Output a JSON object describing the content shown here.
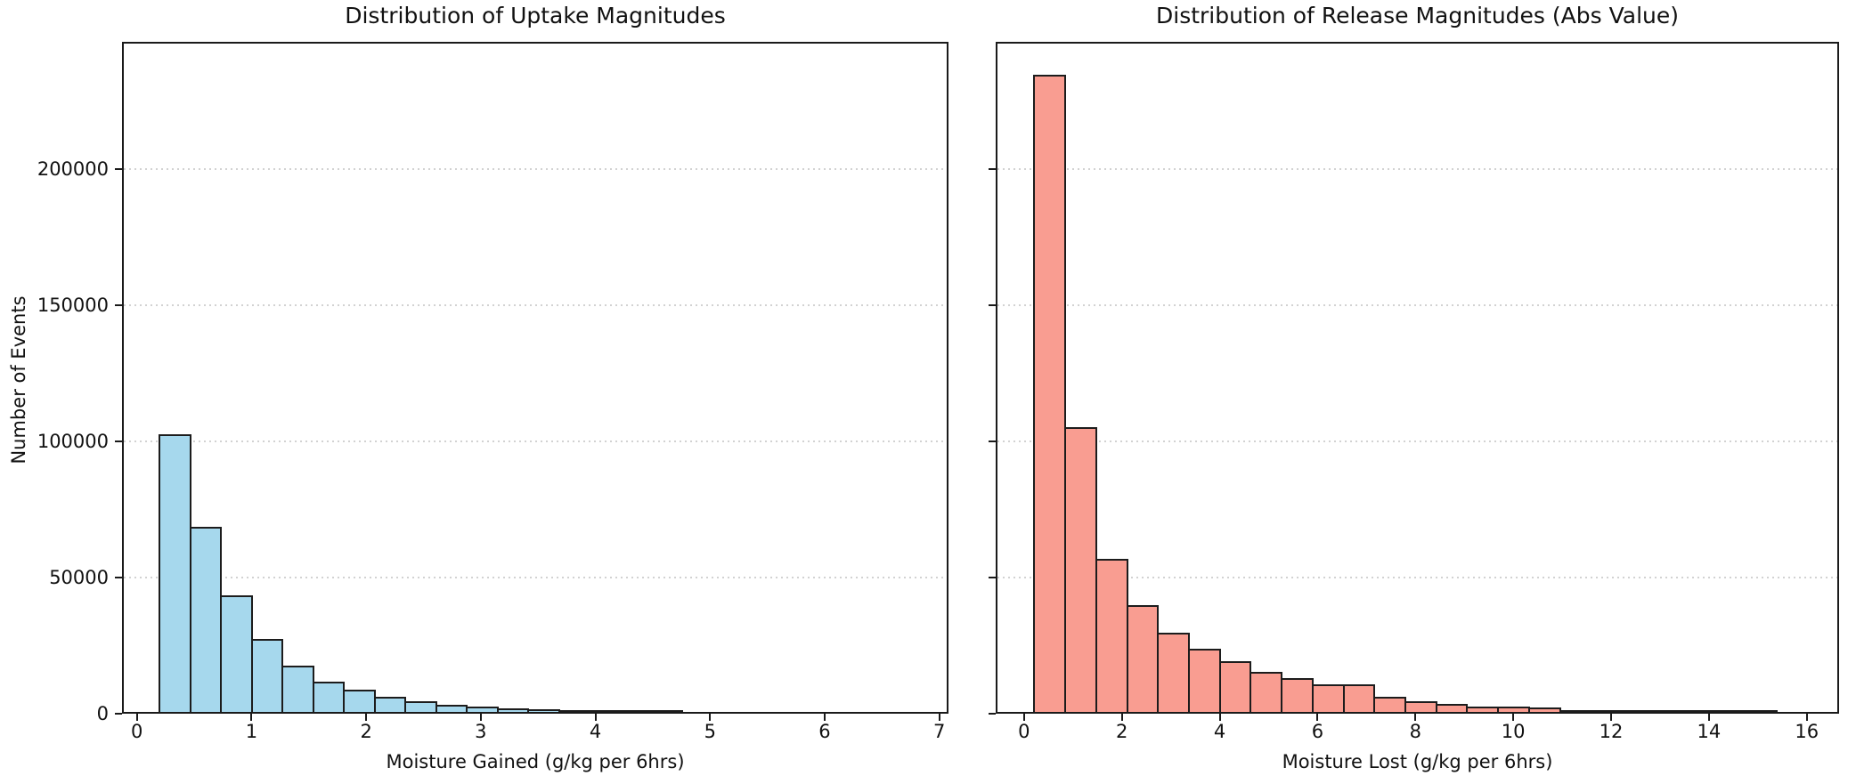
{
  "chart_data": [
    {
      "type": "bar",
      "title": "Distribution of Uptake Magnitudes",
      "xlabel": "Moisture Gained (g/kg per 6hrs)",
      "ylabel": "Number of Events",
      "grid": "horizontal dotted",
      "legend_position": "none",
      "bar_color": "#a6d8ed",
      "edge_color": "#1c1c1c",
      "bins": {
        "start": 0.2,
        "width": 0.268,
        "count": 25
      },
      "values": [
        102600,
        68300,
        43200,
        26900,
        17100,
        11100,
        8200,
        5700,
        4000,
        2600,
        2050,
        1300,
        980,
        650,
        430,
        240,
        80,
        0,
        0,
        0,
        0,
        0,
        0,
        0,
        0
      ],
      "xticks": [
        0,
        1,
        2,
        3,
        4,
        5,
        6,
        7
      ],
      "xtick_labels": [
        "0",
        "1",
        "2",
        "3",
        "4",
        "5",
        "6",
        "7"
      ],
      "yticks": [
        0,
        50000,
        100000,
        150000,
        200000
      ],
      "ytick_labels": [
        "0",
        "50000",
        "100000",
        "150000",
        "200000"
      ],
      "ytick_labels_visible": true,
      "xlim": [
        -0.13,
        7.08
      ],
      "ylim": [
        0,
        246700
      ]
    },
    {
      "type": "bar",
      "title": "Distribution of Release Magnitudes (Abs Value)",
      "xlabel": "Moisture Lost (g/kg per 6hrs)",
      "ylabel": "",
      "grid": "horizontal dotted",
      "legend_position": "none",
      "bar_color": "#f99d91",
      "edge_color": "#1c1c1c",
      "bins": {
        "start": 0.21,
        "width": 0.632,
        "count": 25
      },
      "values": [
        235200,
        105100,
        56500,
        39400,
        29300,
        23300,
        18700,
        14900,
        12600,
        10300,
        10300,
        5650,
        3800,
        2950,
        2050,
        2000,
        1630,
        520,
        300,
        250,
        150,
        100,
        80,
        50,
        0
      ],
      "xticks": [
        0,
        2,
        4,
        6,
        8,
        10,
        12,
        14,
        16
      ],
      "xtick_labels": [
        "0",
        "2",
        "4",
        "6",
        "8",
        "10",
        "12",
        "14",
        "16"
      ],
      "yticks": [
        0,
        50000,
        100000,
        150000,
        200000
      ],
      "ytick_labels": [],
      "ytick_labels_visible": false,
      "xlim": [
        -0.58,
        16.66
      ],
      "ylim": [
        0,
        246700
      ]
    }
  ]
}
